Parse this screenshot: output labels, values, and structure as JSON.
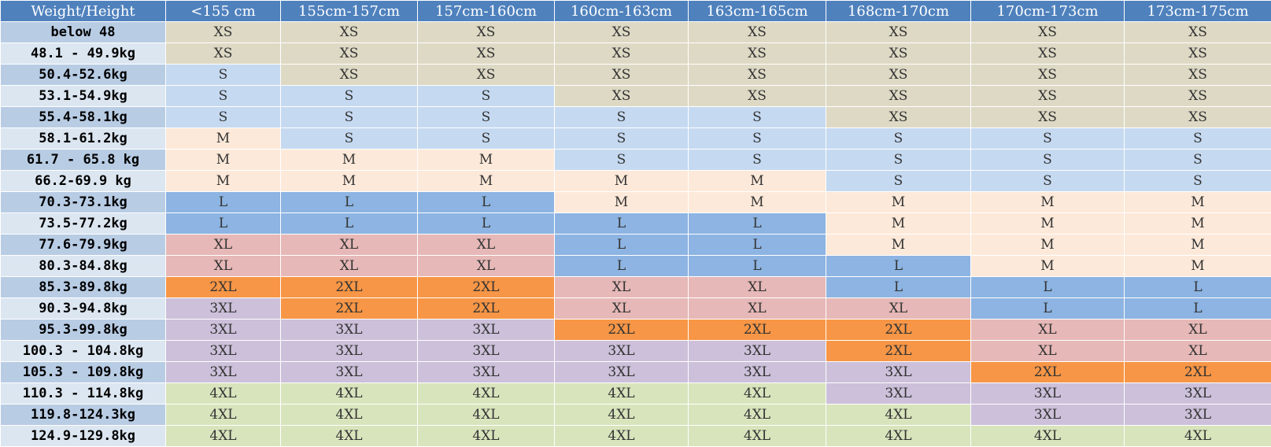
{
  "header": {
    "corner": "Weight/Height",
    "heights": [
      "<155 cm",
      "155cm-157cm",
      "157cm-160cm",
      "160cm-163cm",
      "163cm-165cm",
      "168cm-170cm",
      "170cm-173cm",
      "173cm-175cm"
    ]
  },
  "size_colors": {
    "XS": "#ddd9c4",
    "S": "#c5d9f1",
    "M": "#fde9d9",
    "L": "#8db4e2",
    "XL": "#e6b8b7",
    "2XL": "#f79646",
    "3XL": "#ccc0da",
    "4XL": "#d8e4bc"
  },
  "rows": [
    {
      "weight": "below 48",
      "sizes": [
        "XS",
        "XS",
        "XS",
        "XS",
        "XS",
        "XS",
        "XS",
        "XS"
      ]
    },
    {
      "weight": "48.1 - 49.9kg",
      "sizes": [
        "XS",
        "XS",
        "XS",
        "XS",
        "XS",
        "XS",
        "XS",
        "XS"
      ]
    },
    {
      "weight": "50.4-52.6kg",
      "sizes": [
        "S",
        "XS",
        "XS",
        "XS",
        "XS",
        "XS",
        "XS",
        "XS"
      ]
    },
    {
      "weight": "53.1-54.9kg",
      "sizes": [
        "S",
        "S",
        "S",
        "XS",
        "XS",
        "XS",
        "XS",
        "XS"
      ]
    },
    {
      "weight": "55.4-58.1kg",
      "sizes": [
        "S",
        "S",
        "S",
        "S",
        "S",
        "XS",
        "XS",
        "XS"
      ]
    },
    {
      "weight": "58.1-61.2kg",
      "sizes": [
        "M",
        "S",
        "S",
        "S",
        "S",
        "S",
        "S",
        "S"
      ]
    },
    {
      "weight": "61.7 - 65.8 kg",
      "sizes": [
        "M",
        "M",
        "M",
        "S",
        "S",
        "S",
        "S",
        "S"
      ]
    },
    {
      "weight": "66.2-69.9 kg",
      "sizes": [
        "M",
        "M",
        "M",
        "M",
        "M",
        "S",
        "S",
        "S"
      ]
    },
    {
      "weight": "70.3-73.1kg",
      "sizes": [
        "L",
        "L",
        "L",
        "M",
        "M",
        "M",
        "M",
        "M"
      ]
    },
    {
      "weight": "73.5-77.2kg",
      "sizes": [
        "L",
        "L",
        "L",
        "L",
        "L",
        "M",
        "M",
        "M"
      ]
    },
    {
      "weight": "77.6-79.9kg",
      "sizes": [
        "XL",
        "XL",
        "XL",
        "L",
        "L",
        "M",
        "M",
        "M"
      ]
    },
    {
      "weight": "80.3-84.8kg",
      "sizes": [
        "XL",
        "XL",
        "XL",
        "L",
        "L",
        "L",
        "M",
        "M"
      ]
    },
    {
      "weight": "85.3-89.8kg",
      "sizes": [
        "2XL",
        "2XL",
        "2XL",
        "XL",
        "XL",
        "L",
        "L",
        "L"
      ]
    },
    {
      "weight": "90.3-94.8kg",
      "sizes": [
        "3XL",
        "2XL",
        "2XL",
        "XL",
        "XL",
        "XL",
        "L",
        "L"
      ]
    },
    {
      "weight": "95.3-99.8kg",
      "sizes": [
        "3XL",
        "3XL",
        "3XL",
        "2XL",
        "2XL",
        "2XL",
        "XL",
        "XL"
      ]
    },
    {
      "weight": "100.3 - 104.8kg",
      "sizes": [
        "3XL",
        "3XL",
        "3XL",
        "3XL",
        "3XL",
        "2XL",
        "XL",
        "XL"
      ]
    },
    {
      "weight": "105.3 - 109.8kg",
      "sizes": [
        "3XL",
        "3XL",
        "3XL",
        "3XL",
        "3XL",
        "3XL",
        "2XL",
        "2XL"
      ]
    },
    {
      "weight": "110.3 - 114.8kg",
      "sizes": [
        "4XL",
        "4XL",
        "4XL",
        "4XL",
        "4XL",
        "3XL",
        "3XL",
        "3XL"
      ]
    },
    {
      "weight": "119.8-124.3kg",
      "sizes": [
        "4XL",
        "4XL",
        "4XL",
        "4XL",
        "4XL",
        "4XL",
        "3XL",
        "3XL"
      ]
    },
    {
      "weight": "124.9-129.8kg",
      "sizes": [
        "4XL",
        "4XL",
        "4XL",
        "4XL",
        "4XL",
        "4XL",
        "4XL",
        "4XL"
      ]
    }
  ]
}
